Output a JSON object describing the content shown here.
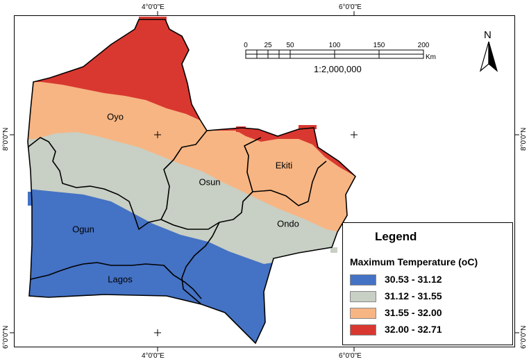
{
  "map": {
    "top_ticks": [
      "4°0'0\"E",
      "6°0'0\"E"
    ],
    "bottom_ticks": [
      "4°0'0\"E",
      "6°0'0\"E"
    ],
    "left_ticks": [
      "8°0'0\"N",
      "6°0'0\"N"
    ],
    "right_ticks": [
      "8°0'0\"N",
      "6°0'0\"N"
    ],
    "states": [
      "Oyo",
      "Osun",
      "Ekiti",
      "Ondo",
      "Ogun",
      "Lagos"
    ]
  },
  "scale_bar": {
    "values": [
      "0",
      "25",
      "50",
      "100",
      "150",
      "200"
    ],
    "unit": "Km",
    "ratio": "1:2,000,000"
  },
  "north_arrow": {
    "letter": "N",
    "icon": "north-arrow-icon"
  },
  "legend": {
    "title": "Legend",
    "subtitle": "Maximum Temperature (oC)",
    "items": [
      {
        "label": "30.53 - 31.12",
        "color": "#4472c4"
      },
      {
        "label": "31.12 - 31.55",
        "color": "#c8cfc4"
      },
      {
        "label": "31.55 - 32.00",
        "color": "#f7b583"
      },
      {
        "label": "32.00 - 32.71",
        "color": "#d93830"
      }
    ]
  }
}
